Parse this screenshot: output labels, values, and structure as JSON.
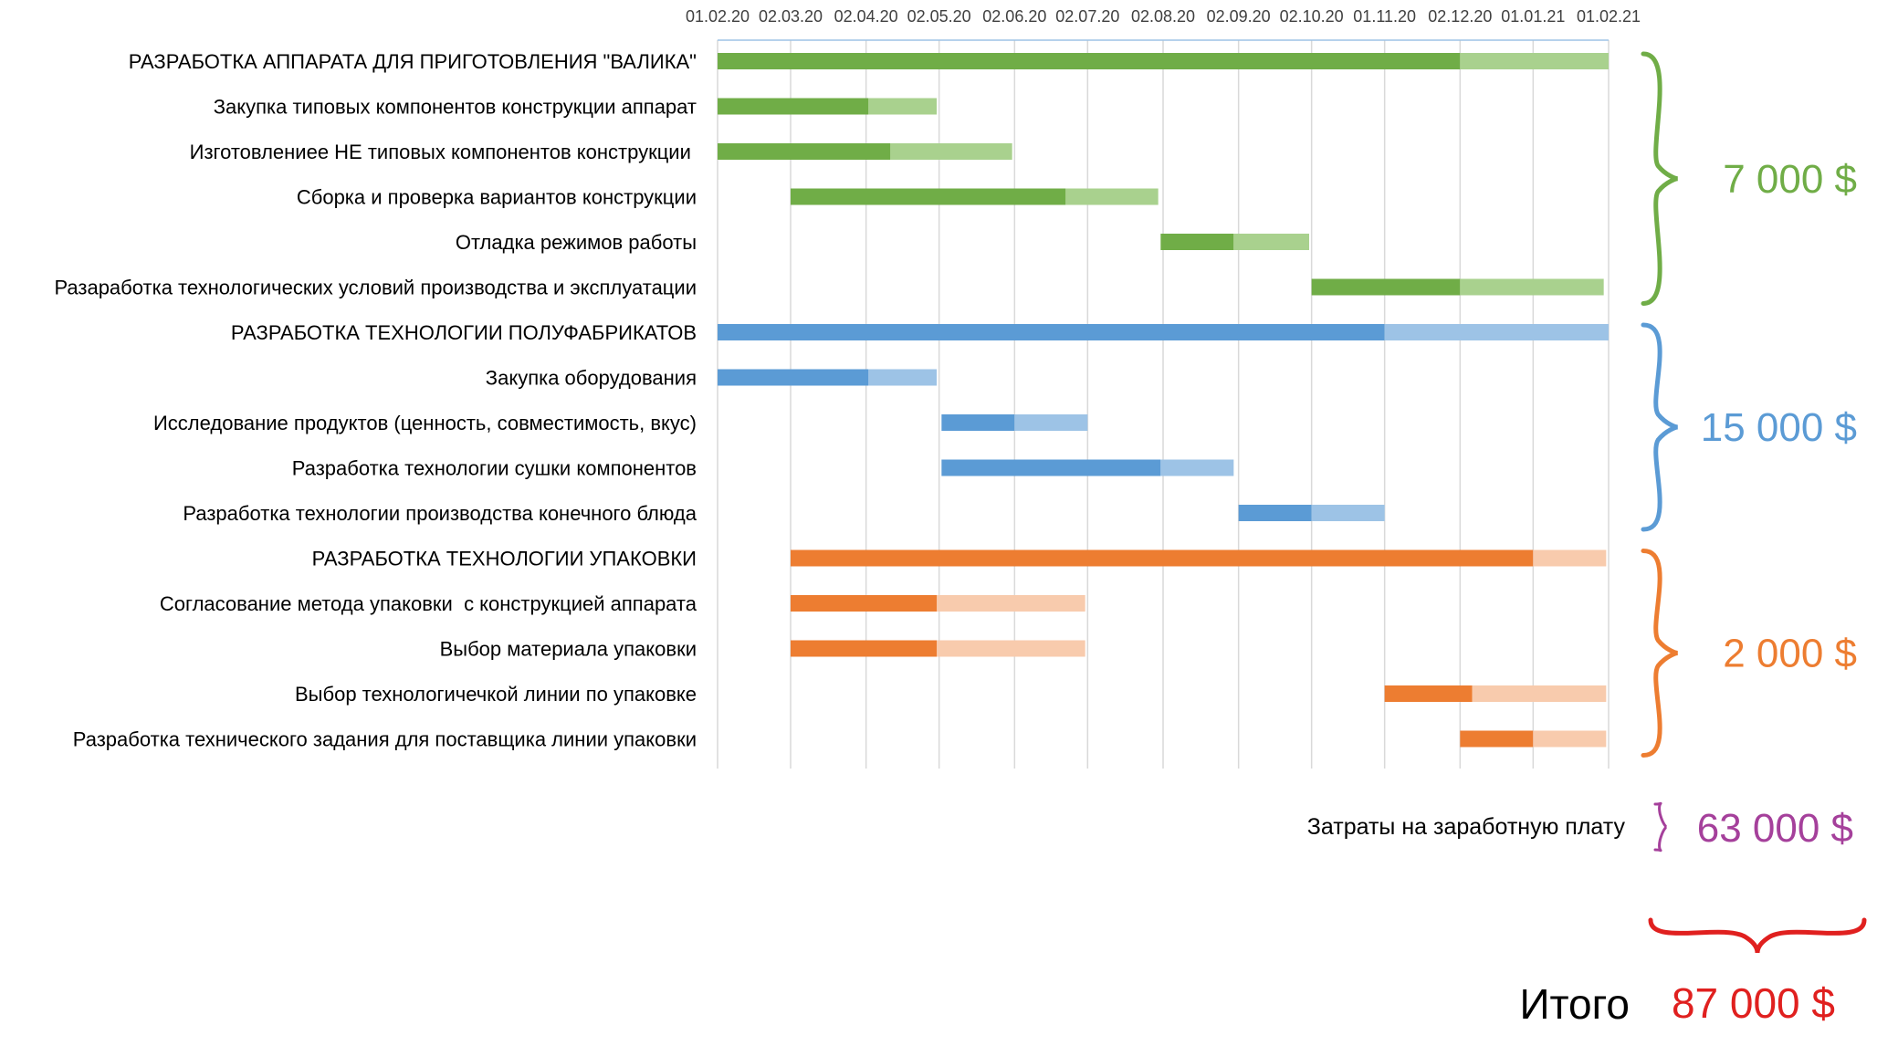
{
  "colors": {
    "green": "#70ad47",
    "green_light": "#a9d18e",
    "blue": "#5b9bd5",
    "blue_light": "#9dc3e6",
    "orange": "#ed7d31",
    "orange_light": "#f8cbad",
    "purple": "#a5409b",
    "red": "#e0201f",
    "grid": "#d9d9d9",
    "axis": "#9dc3e6"
  },
  "chart_data": {
    "type": "gantt",
    "x_axis": {
      "ticks": [
        "01.02.20",
        "02.03.20",
        "02.04.20",
        "02.05.20",
        "02.06.20",
        "02.07.20",
        "02.08.20",
        "02.09.20",
        "02.10.20",
        "01.11.20",
        "02.12.20",
        "01.01.21",
        "01.02.21"
      ],
      "tick_dates": [
        "2020-02-01",
        "2020-03-02",
        "2020-04-02",
        "2020-05-02",
        "2020-06-02",
        "2020-07-02",
        "2020-08-02",
        "2020-09-02",
        "2020-10-02",
        "2020-11-01",
        "2020-12-02",
        "2021-01-01",
        "2021-02-01"
      ],
      "range": [
        "2020-02-01",
        "2021-02-01"
      ],
      "grid": true
    },
    "tasks": [
      {
        "label": "РАЗРАБОТКА АППАРАТА ДЛЯ ПРИГОТОВЛЕНИЯ \"ВАЛИКА\"",
        "group": "green",
        "start": "2020-02-01",
        "split": "2020-12-02",
        "end": "2021-02-01"
      },
      {
        "label": "Закупка типовых компонентов конструкции аппарат",
        "group": "green",
        "start": "2020-02-01",
        "split": "2020-04-03",
        "end": "2020-05-01"
      },
      {
        "label": "Изготовлениее НЕ типовых компонентов конструкции ",
        "group": "green",
        "start": "2020-02-01",
        "split": "2020-04-12",
        "end": "2020-06-01"
      },
      {
        "label": "Сборка и проверка вариантов конструкции",
        "group": "green",
        "start": "2020-03-02",
        "split": "2020-06-23",
        "end": "2020-07-31"
      },
      {
        "label": "Отладка режимов работы",
        "group": "green",
        "start": "2020-08-01",
        "split": "2020-08-31",
        "end": "2020-10-01"
      },
      {
        "label": "Разаработка технологических условий производства и эксплуатации",
        "group": "green",
        "start": "2020-10-02",
        "split": "2020-12-02",
        "end": "2021-01-30"
      },
      {
        "label": "РАЗРАБОТКА ТЕХНОЛОГИИ ПОЛУФАБРИКАТОВ",
        "group": "blue",
        "start": "2020-02-01",
        "split": "2020-11-01",
        "end": "2021-02-01"
      },
      {
        "label": "Закупка оборудования",
        "group": "blue",
        "start": "2020-02-01",
        "split": "2020-04-03",
        "end": "2020-05-01"
      },
      {
        "label": "Исследование продуктов (ценность, совместимость, вкус)",
        "group": "blue",
        "start": "2020-05-03",
        "split": "2020-06-02",
        "end": "2020-07-02"
      },
      {
        "label": "Разработка технологии сушки компонентов",
        "group": "blue",
        "start": "2020-05-03",
        "split": "2020-08-01",
        "end": "2020-08-31"
      },
      {
        "label": "Разработка технологии производства конечного блюда",
        "group": "blue",
        "start": "2020-09-02",
        "split": "2020-10-02",
        "end": "2020-11-01"
      },
      {
        "label": "РАЗРАБОТКА ТЕХНОЛОГИИ УПАКОВКИ",
        "group": "orange",
        "start": "2020-03-02",
        "split": "2021-01-01",
        "end": "2021-01-31"
      },
      {
        "label": "Согласование метода упаковки  с конструкцией аппарата",
        "group": "orange",
        "start": "2020-03-02",
        "split": "2020-05-01",
        "end": "2020-07-01"
      },
      {
        "label": "Выбор материала упаковки",
        "group": "orange",
        "start": "2020-03-02",
        "split": "2020-05-01",
        "end": "2020-07-01"
      },
      {
        "label": "Выбор технологичечкой линии по упаковке",
        "group": "orange",
        "start": "2020-11-01",
        "split": "2020-12-07",
        "end": "2021-01-31"
      },
      {
        "label": "Разработка технического задания для поставщика линии упаковки",
        "group": "orange",
        "start": "2020-12-02",
        "split": "2021-01-01",
        "end": "2021-01-31"
      }
    ]
  },
  "costs": [
    {
      "text": "7 000 $",
      "color": "green",
      "from_task": 0,
      "to_task": 5
    },
    {
      "text": "15 000 $",
      "color": "blue",
      "from_task": 6,
      "to_task": 10
    },
    {
      "text": "2 000 $",
      "color": "orange",
      "from_task": 11,
      "to_task": 15
    }
  ],
  "salary": {
    "label": "Затраты на заработную плату",
    "value": "63 000 $",
    "color": "purple"
  },
  "total": {
    "label": "Итого",
    "value": "87 000 $",
    "color": "red"
  }
}
